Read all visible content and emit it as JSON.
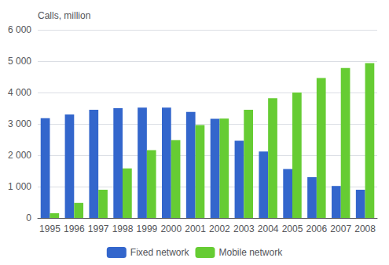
{
  "chart_data": {
    "type": "bar",
    "ylabel": "Calls, million",
    "categories": [
      "1995",
      "1996",
      "1997",
      "1998",
      "1999",
      "2000",
      "2001",
      "2002",
      "2003",
      "2004",
      "2005",
      "2006",
      "2007",
      "2008"
    ],
    "series": [
      {
        "name": "Fixed network",
        "color": "#3366cc",
        "values": [
          3180,
          3300,
          3450,
          3500,
          3520,
          3520,
          3380,
          3160,
          2460,
          2120,
          1560,
          1300,
          1020,
          900
        ]
      },
      {
        "name": "Mobile network",
        "color": "#66cc33",
        "values": [
          150,
          480,
          900,
          1580,
          2160,
          2480,
          2960,
          3170,
          3450,
          3820,
          4000,
          4460,
          4780,
          4940
        ]
      }
    ],
    "ylim": [
      0,
      6000
    ],
    "yticks": [
      0,
      {
        "value": 1000,
        "label": "1 000"
      },
      {
        "value": 2000,
        "label": "2 000"
      },
      {
        "value": 3000,
        "label": "3 000"
      },
      {
        "value": 4000,
        "label": "4 000"
      },
      {
        "value": 5000,
        "label": "5 000"
      },
      {
        "value": 6000,
        "label": "6 000"
      }
    ],
    "grid": true,
    "legend": "bottom"
  }
}
